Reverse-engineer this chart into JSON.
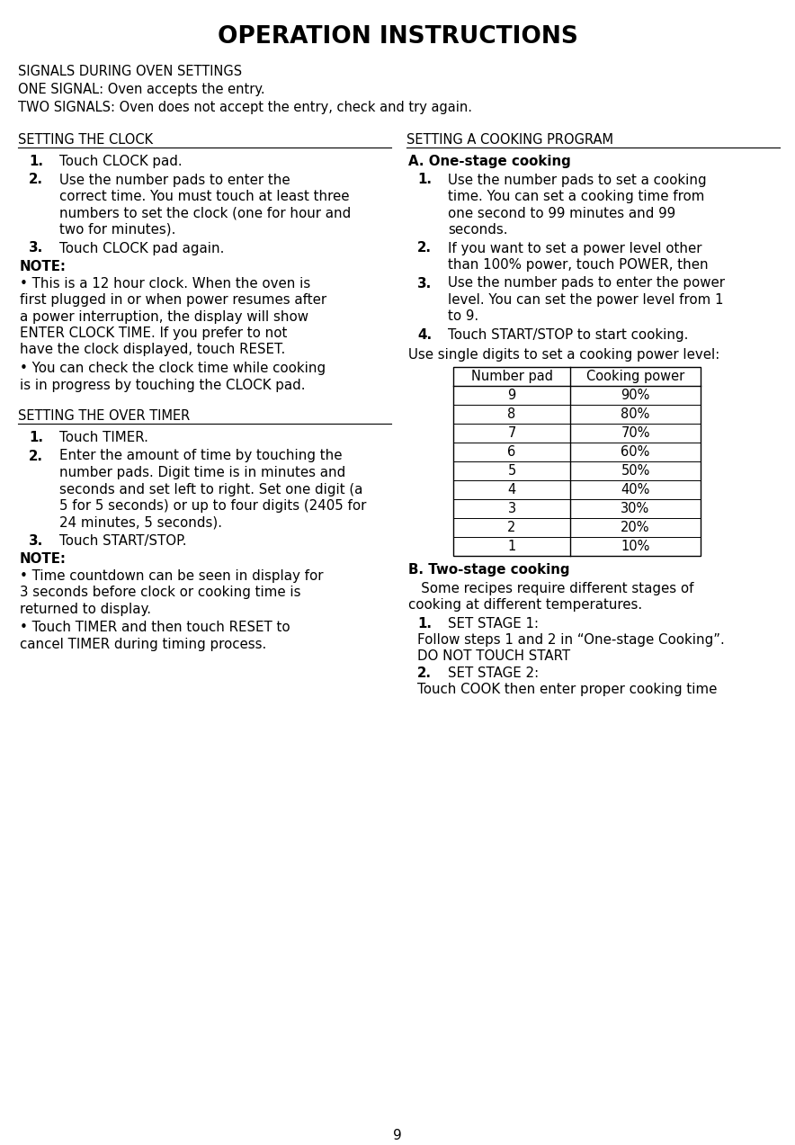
{
  "title": "OPERATION INSTRUCTIONS",
  "bg_color": "#ffffff",
  "text_color": "#000000",
  "page_number": "9",
  "header_intro": [
    "SIGNALS DURING OVEN SETTINGS",
    "ONE SIGNAL: Oven accepts the entry.",
    "TWO SIGNALS: Oven does not accept the entry, check and try again."
  ],
  "left_section1_title": "SETTING THE CLOCK",
  "left_section1_items": [
    {
      "num": "1.",
      "text": "Touch CLOCK pad."
    },
    {
      "num": "2.",
      "text": "Use the number pads to enter the\ncorrect time. You must touch at least three\nnumbers to set the clock (one for hour and\ntwo for minutes)."
    },
    {
      "num": "3.",
      "text": "Touch CLOCK pad again."
    }
  ],
  "left_section1_note_title": "NOTE:",
  "left_section1_notes": [
    "• This is a 12 hour clock. When the oven is\nfirst plugged in or when power resumes after\na power interruption, the display will show\nENTER CLOCK TIME. If you prefer to not\nhave the clock displayed, touch RESET.",
    "• You can check the clock time while cooking\nis in progress by touching the CLOCK pad."
  ],
  "left_section2_title": "SETTING THE OVER TIMER",
  "left_section2_items": [
    {
      "num": "1.",
      "text": "Touch TIMER."
    },
    {
      "num": "2.",
      "text": "Enter the amount of time by touching the\nnumber pads. Digit time is in minutes and\nseconds and set left to right. Set one digit (a\n5 for 5 seconds) or up to four digits (2405 for\n24 minutes, 5 seconds)."
    },
    {
      "num": "3.",
      "text": "Touch START/STOP."
    }
  ],
  "left_section2_note_title": "NOTE:",
  "left_section2_notes": [
    "• Time countdown can be seen in display for\n3 seconds before clock or cooking time is\nreturned to display.",
    "• Touch TIMER and then touch RESET to\ncancel TIMER during timing process."
  ],
  "right_section1_title": "SETTING A COOKING PROGRAM",
  "right_section1_sub": "A. One-stage cooking",
  "right_section1_items": [
    {
      "num": "1.",
      "text": "Use the number pads to set a cooking\ntime. You can set a cooking time from\none second to 99 minutes and 99\nseconds."
    },
    {
      "num": "2.",
      "text": "If you want to set a power level other\nthan 100% power, touch POWER, then"
    },
    {
      "num": "3.",
      "text": "Use the number pads to enter the power\nlevel. You can set the power level from 1\nto 9."
    },
    {
      "num": "4.",
      "text": "Touch START/STOP to start cooking."
    }
  ],
  "table_intro": "Use single digits to set a cooking power level:",
  "table_headers": [
    "Number pad",
    "Cooking power"
  ],
  "table_rows": [
    [
      "9",
      "90%"
    ],
    [
      "8",
      "80%"
    ],
    [
      "7",
      "70%"
    ],
    [
      "6",
      "60%"
    ],
    [
      "5",
      "50%"
    ],
    [
      "4",
      "40%"
    ],
    [
      "3",
      "30%"
    ],
    [
      "2",
      "20%"
    ],
    [
      "1",
      "10%"
    ]
  ],
  "right_section2_sub": "B. Two-stage cooking",
  "right_section2_intro": "   Some recipes require different stages of\ncooking at different temperatures.",
  "right_section2_items": [
    {
      "num": "1.",
      "text": "SET STAGE 1:"
    },
    {
      "num": "",
      "text": "Follow steps 1 and 2 in “One-stage Cooking”."
    },
    {
      "num": "",
      "text": "DO NOT TOUCH START"
    },
    {
      "num": "2.",
      "text": "SET STAGE 2:"
    },
    {
      "num": "",
      "text": "Touch COOK then enter proper cooking time"
    }
  ]
}
